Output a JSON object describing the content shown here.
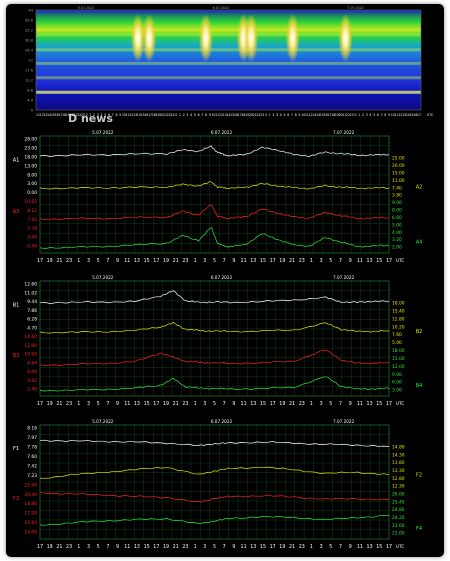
{
  "colors": {
    "background": "#000000",
    "grid": "#1f6f2a",
    "white": "#ffffff",
    "yellow": "#e6e600",
    "red": "#ff2020",
    "green": "#2ee83a",
    "spectrogram_axis": "#9999aa"
  },
  "watermark": "D news",
  "spectrogram": {
    "top_dates": [
      "5.07.2022",
      "6.07.2022",
      "7.07.2022"
    ],
    "y_ticks": [
      "0",
      "4.4",
      "8.8",
      "13.2",
      "17.6",
      "22",
      "26.4",
      "30.8",
      "35.2",
      "39.6",
      "44"
    ],
    "x_ticks": [
      "11",
      "12",
      "13",
      "14",
      "15",
      "16",
      "17",
      "18",
      "19",
      "20",
      "21",
      "22",
      "23",
      "0",
      "1",
      "2",
      "3",
      "4",
      "5",
      "6",
      "7",
      "8",
      "9",
      "10",
      "11",
      "12",
      "13",
      "14",
      "15",
      "16",
      "17",
      "18",
      "19",
      "20",
      "21",
      "22",
      "23",
      "0",
      "1",
      "2",
      "3",
      "4",
      "5",
      "6",
      "7",
      "8",
      "9",
      "10",
      "11",
      "12",
      "13",
      "14",
      "15",
      "16",
      "17",
      "18",
      "19",
      "20",
      "21",
      "22",
      "23",
      "0",
      "1",
      "2",
      "3",
      "4",
      "5",
      "6",
      "7",
      "8",
      "9",
      "10",
      "11",
      "12",
      "13",
      "14",
      "15",
      "16",
      "17",
      "18",
      "19",
      "20",
      "21",
      "22",
      "23",
      "0",
      "1",
      "2",
      "3",
      "4",
      "5",
      "6",
      "7",
      "8",
      "9",
      "10",
      "11",
      "12",
      "13",
      "14",
      "15",
      "16",
      "17"
    ],
    "x_unit": "UTC"
  },
  "panels": [
    {
      "id": "A",
      "dates": [
        "5.07.2022",
        "6.07.2022",
        "7.07.2022"
      ],
      "left_label_top": "A1",
      "left_label_red": "A3",
      "right_label_yellow": "A2",
      "right_label_green": "A4",
      "left_ticks": [
        {
          "text": "28.00",
          "color": "white"
        },
        {
          "text": "23.00",
          "color": "white"
        },
        {
          "text": "18.00",
          "color": "white"
        },
        {
          "text": "13.00",
          "color": "white"
        },
        {
          "text": "8.00",
          "color": "white"
        },
        {
          "text": "3.00",
          "color": "white"
        },
        {
          "text": "0.00",
          "color": "white"
        },
        {
          "text": "10.65",
          "color": "red"
        },
        {
          "text": "8.12",
          "color": "red"
        },
        {
          "text": "7.60",
          "color": "red"
        },
        {
          "text": "5.79",
          "color": "red"
        },
        {
          "text": "3.00",
          "color": "red"
        },
        {
          "text": "0.48",
          "color": "red"
        }
      ],
      "right_ticks": [
        {
          "text": "25.00",
          "color": "yellow"
        },
        {
          "text": "20.00",
          "color": "yellow"
        },
        {
          "text": "15.00",
          "color": "yellow"
        },
        {
          "text": "11.00",
          "color": "yellow"
        },
        {
          "text": "7.40",
          "color": "yellow"
        },
        {
          "text": "3.80",
          "color": "yellow"
        },
        {
          "text": "9.00",
          "color": "green"
        },
        {
          "text": "8.00",
          "color": "green"
        },
        {
          "text": "6.60",
          "color": "green"
        },
        {
          "text": "5.00",
          "color": "green"
        },
        {
          "text": "4.00",
          "color": "green"
        },
        {
          "text": "3.20",
          "color": "green"
        },
        {
          "text": "2.00",
          "color": "green"
        }
      ]
    },
    {
      "id": "B",
      "dates": [
        "5.07.2022",
        "6.07.2022",
        "7.07.2022"
      ],
      "left_label_top": "B1",
      "left_label_red": "B3",
      "right_label_yellow": "B2",
      "right_label_green": "B4",
      "left_ticks": [
        {
          "text": "12.60",
          "color": "white"
        },
        {
          "text": "11.02",
          "color": "white"
        },
        {
          "text": "9.44",
          "color": "white"
        },
        {
          "text": "7.86",
          "color": "white"
        },
        {
          "text": "6.28",
          "color": "white"
        },
        {
          "text": "4.70",
          "color": "white"
        },
        {
          "text": "14.60",
          "color": "red"
        },
        {
          "text": "12.60",
          "color": "red"
        },
        {
          "text": "10.60",
          "color": "red"
        },
        {
          "text": "8.64",
          "color": "red"
        },
        {
          "text": "6.00",
          "color": "red"
        },
        {
          "text": "4.62",
          "color": "red"
        },
        {
          "text": "2.40",
          "color": "red"
        }
      ],
      "right_ticks": [
        {
          "text": "18.00",
          "color": "yellow"
        },
        {
          "text": "15.40",
          "color": "yellow"
        },
        {
          "text": "12.80",
          "color": "yellow"
        },
        {
          "text": "10.20",
          "color": "yellow"
        },
        {
          "text": "7.60",
          "color": "yellow"
        },
        {
          "text": "5.00",
          "color": "yellow"
        },
        {
          "text": "18.00",
          "color": "green"
        },
        {
          "text": "15.00",
          "color": "green"
        },
        {
          "text": "12.00",
          "color": "green"
        },
        {
          "text": "9.00",
          "color": "green"
        },
        {
          "text": "6.00",
          "color": "green"
        },
        {
          "text": "3.00",
          "color": "green"
        }
      ]
    },
    {
      "id": "F",
      "dates": [
        "5.07.2022",
        "6.07.2022",
        "7.07.2022"
      ],
      "left_label_top": "F1",
      "left_label_red": "F3",
      "right_label_yellow": "F2",
      "right_label_green": "F4",
      "left_ticks": [
        {
          "text": "8.16",
          "color": "white"
        },
        {
          "text": "7.97",
          "color": "white"
        },
        {
          "text": "7.78",
          "color": "white"
        },
        {
          "text": "7.60",
          "color": "white"
        },
        {
          "text": "7.42",
          "color": "white"
        },
        {
          "text": "7.23",
          "color": "white"
        },
        {
          "text": "22.00",
          "color": "red"
        },
        {
          "text": "20.40",
          "color": "red"
        },
        {
          "text": "18.80",
          "color": "red"
        },
        {
          "text": "17.20",
          "color": "red"
        },
        {
          "text": "15.60",
          "color": "red"
        },
        {
          "text": "14.00",
          "color": "red"
        }
      ],
      "right_ticks": [
        {
          "text": "14.80",
          "color": "yellow"
        },
        {
          "text": "14.30",
          "color": "yellow"
        },
        {
          "text": "13.80",
          "color": "yellow"
        },
        {
          "text": "13.30",
          "color": "yellow"
        },
        {
          "text": "12.80",
          "color": "yellow"
        },
        {
          "text": "12.30",
          "color": "yellow"
        },
        {
          "text": "26.00",
          "color": "green"
        },
        {
          "text": "25.40",
          "color": "green"
        },
        {
          "text": "24.80",
          "color": "green"
        },
        {
          "text": "24.20",
          "color": "green"
        },
        {
          "text": "23.60",
          "color": "green"
        },
        {
          "text": "23.00",
          "color": "green"
        }
      ]
    }
  ],
  "panel_x_ticks": [
    "17",
    "19",
    "21",
    "23",
    "1",
    "3",
    "5",
    "7",
    "9",
    "11",
    "13",
    "15",
    "17",
    "19",
    "21",
    "23",
    "1",
    "3",
    "5",
    "7",
    "9",
    "11",
    "13",
    "15",
    "17",
    "19",
    "21",
    "23",
    "1",
    "3",
    "5",
    "7",
    "9",
    "11",
    "13",
    "15",
    "17"
  ],
  "panel_x_unit": "UTC",
  "chart_data": [
    {
      "type": "heatmap",
      "title": "",
      "x_range_hours": [
        0,
        102
      ],
      "ylim": [
        0,
        44
      ],
      "bright_bands": [
        7.8,
        14.2,
        20.5,
        26.5,
        33
      ],
      "peak_intensity_hours": [
        27,
        30,
        45,
        55,
        57,
        68,
        82
      ]
    },
    {
      "type": "line",
      "panel": "A",
      "xlim": [
        0,
        110
      ],
      "series": [
        {
          "name": "A1",
          "color": "white",
          "ylim": [
            0,
            28
          ],
          "x": [
            0,
            10,
            20,
            30,
            40,
            45,
            50,
            54,
            56,
            58,
            60,
            65,
            70,
            75,
            80,
            85,
            90,
            95,
            100,
            105,
            110
          ],
          "y": [
            19,
            19.5,
            20,
            20.5,
            21,
            24,
            23,
            27,
            22,
            20,
            19,
            20.5,
            26,
            24,
            20,
            19,
            22,
            21,
            19.5,
            19.8,
            20
          ]
        },
        {
          "name": "A2",
          "color": "yellow",
          "ylim": [
            0,
            25
          ],
          "x": [
            0,
            10,
            20,
            30,
            40,
            45,
            50,
            54,
            56,
            58,
            60,
            65,
            70,
            75,
            80,
            85,
            90,
            95,
            100,
            105,
            110
          ],
          "y": [
            10,
            10.2,
            10.5,
            10.8,
            11,
            13,
            12,
            15,
            11,
            10.5,
            10,
            11,
            13.5,
            12,
            10.5,
            10,
            12,
            11,
            10.2,
            10.3,
            10.4
          ]
        },
        {
          "name": "A3",
          "color": "red",
          "ylim": [
            0,
            10.65
          ],
          "x": [
            0,
            10,
            20,
            30,
            40,
            45,
            50,
            54,
            56,
            58,
            60,
            65,
            70,
            75,
            80,
            85,
            90,
            95,
            100,
            105,
            110
          ],
          "y": [
            3.2,
            3.3,
            3.4,
            3.6,
            3.8,
            5.5,
            4.5,
            7.6,
            4,
            3.6,
            3.4,
            4,
            6.2,
            5,
            3.8,
            3.5,
            5.2,
            4.2,
            3.4,
            3.5,
            3.6
          ]
        },
        {
          "name": "A4",
          "color": "green",
          "ylim": [
            2,
            9
          ],
          "x": [
            0,
            10,
            20,
            30,
            40,
            45,
            50,
            54,
            56,
            58,
            60,
            65,
            70,
            75,
            80,
            85,
            90,
            95,
            100,
            105,
            110
          ],
          "y": [
            2.6,
            2.7,
            2.9,
            3.2,
            3.6,
            5.2,
            4.2,
            7,
            3.5,
            3,
            2.8,
            3.4,
            5.6,
            4.4,
            3.2,
            3,
            4.8,
            3.8,
            2.9,
            3,
            3.1
          ]
        }
      ]
    },
    {
      "type": "line",
      "panel": "B",
      "xlim": [
        0,
        110
      ],
      "series": [
        {
          "name": "B1",
          "color": "white",
          "ylim": [
            4.7,
            12.6
          ],
          "x": [
            0,
            10,
            20,
            30,
            38,
            42,
            46,
            50,
            54,
            60,
            70,
            80,
            90,
            95,
            100,
            105,
            110
          ],
          "y": [
            9.5,
            9.6,
            9.7,
            9.8,
            11.2,
            12.4,
            10,
            9.6,
            9.7,
            9.6,
            9.8,
            10.2,
            10.8,
            9.7,
            9.6,
            9.9,
            9.8
          ]
        },
        {
          "name": "B2",
          "color": "yellow",
          "ylim": [
            5,
            18
          ],
          "x": [
            0,
            10,
            20,
            30,
            38,
            42,
            46,
            50,
            54,
            60,
            70,
            80,
            90,
            95,
            100,
            105,
            110
          ],
          "y": [
            10.2,
            10.3,
            10.5,
            11,
            12.5,
            14,
            11.5,
            11,
            10.8,
            10.6,
            10.8,
            11.2,
            14,
            11.5,
            10.6,
            10.7,
            10.8
          ]
        },
        {
          "name": "B3",
          "color": "red",
          "ylim": [
            2.4,
            14.6
          ],
          "x": [
            0,
            10,
            20,
            30,
            38,
            42,
            46,
            50,
            54,
            60,
            70,
            80,
            90,
            95,
            100,
            105,
            110
          ],
          "y": [
            5.2,
            5.4,
            5.8,
            6.4,
            9.5,
            8,
            6.5,
            6.2,
            6,
            5.8,
            6,
            6.6,
            10.6,
            7,
            5.8,
            5.9,
            6
          ]
        },
        {
          "name": "B4",
          "color": "green",
          "ylim": [
            3,
            18
          ],
          "x": [
            0,
            10,
            20,
            30,
            38,
            42,
            46,
            50,
            54,
            60,
            70,
            80,
            90,
            95,
            100,
            105,
            110
          ],
          "y": [
            4.5,
            4.6,
            5,
            5.6,
            7,
            10,
            6.2,
            5.6,
            5.4,
            5.2,
            5.4,
            6,
            11,
            6.4,
            5.2,
            5.3,
            5.4
          ]
        }
      ]
    },
    {
      "type": "line",
      "panel": "F",
      "xlim": [
        0,
        110
      ],
      "series": [
        {
          "name": "F1",
          "color": "white",
          "ylim": [
            7.23,
            8.16
          ],
          "x": [
            0,
            10,
            20,
            30,
            40,
            50,
            55,
            60,
            70,
            80,
            90,
            100,
            110
          ],
          "y": [
            7.98,
            7.96,
            7.95,
            7.93,
            7.9,
            7.82,
            7.88,
            7.9,
            7.93,
            7.9,
            7.86,
            7.84,
            7.8
          ]
        },
        {
          "name": "F2",
          "color": "yellow",
          "ylim": [
            12.3,
            14.8
          ],
          "x": [
            0,
            10,
            20,
            30,
            40,
            50,
            55,
            60,
            70,
            80,
            90,
            100,
            110
          ],
          "y": [
            13.1,
            13.4,
            13.6,
            13.8,
            14,
            13.4,
            13.7,
            13.9,
            14,
            13.8,
            13.5,
            13.6,
            13.4
          ]
        },
        {
          "name": "F3",
          "color": "red",
          "ylim": [
            14,
            22
          ],
          "x": [
            0,
            10,
            20,
            30,
            40,
            50,
            55,
            60,
            70,
            80,
            90,
            100,
            110
          ],
          "y": [
            19.5,
            19.2,
            19,
            18.6,
            18.4,
            17.2,
            18.2,
            18.6,
            18.8,
            18.5,
            18,
            18.1,
            17.8
          ]
        },
        {
          "name": "F4",
          "color": "green",
          "ylim": [
            23,
            26
          ],
          "x": [
            0,
            10,
            20,
            30,
            40,
            50,
            55,
            60,
            70,
            80,
            90,
            100,
            110
          ],
          "y": [
            24.1,
            24.3,
            24.5,
            24.6,
            24.7,
            24.2,
            24.5,
            24.7,
            24.9,
            24.8,
            24.6,
            24.8,
            25
          ]
        }
      ]
    }
  ]
}
